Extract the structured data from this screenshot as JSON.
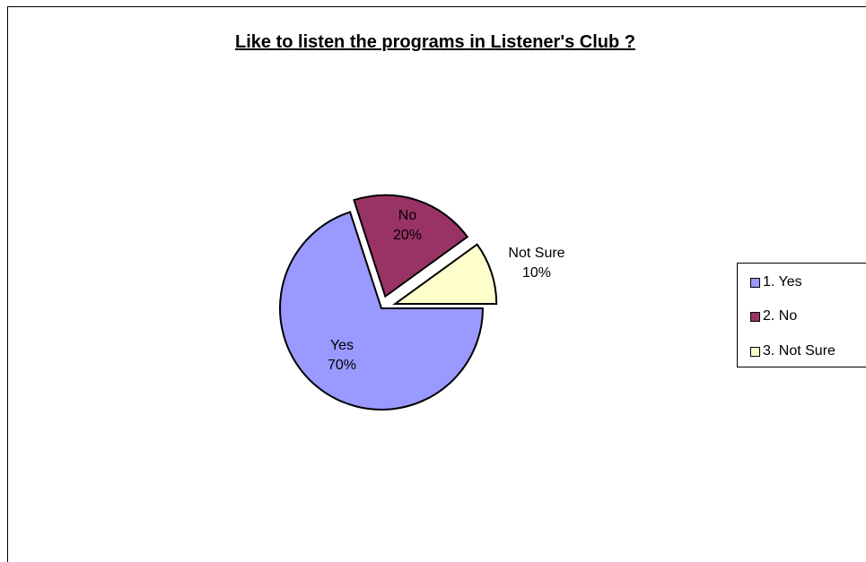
{
  "chart_data": {
    "type": "pie",
    "title": "Like to listen the programs in Listener's Club ?",
    "slices": [
      {
        "label": "Yes",
        "percent_label": "70%",
        "value": 70,
        "legend": "1. Yes",
        "color": "#9999FF"
      },
      {
        "label": "No",
        "percent_label": "20%",
        "value": 20,
        "legend": "2. No",
        "color": "#993366"
      },
      {
        "label": "Not Sure",
        "percent_label": "10%",
        "value": 10,
        "legend": "3. Not Sure",
        "color": "#FFFFCC"
      }
    ],
    "legend_position": "right",
    "exploded": true
  }
}
